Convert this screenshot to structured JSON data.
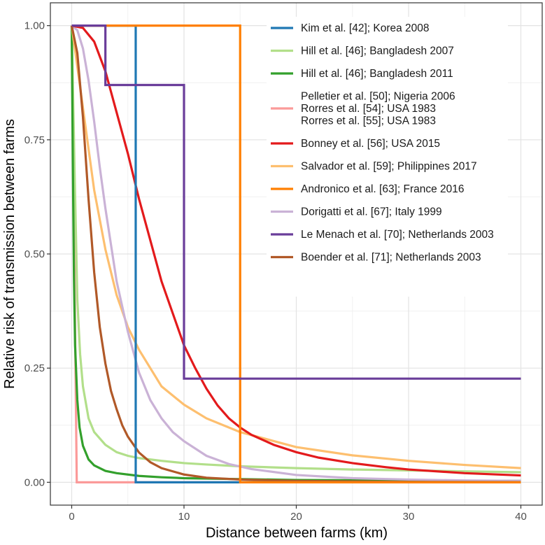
{
  "chart_data": {
    "type": "line",
    "xlabel": "Distance between farms (km)",
    "ylabel": "Relative risk of transmission between farms",
    "xlim": [
      -1.9,
      41.9
    ],
    "ylim": [
      -0.05,
      1.05
    ],
    "x_ticks": [
      0,
      10,
      20,
      30,
      40
    ],
    "x_tick_labels": [
      "0",
      "10",
      "20",
      "30",
      "40"
    ],
    "y_ticks": [
      0,
      0.25,
      0.5,
      0.75,
      1.0
    ],
    "y_tick_labels": [
      "0.00",
      "0.25",
      "0.50",
      "0.75",
      "1.00"
    ],
    "grid": true,
    "legend_position": "top-right",
    "series": [
      {
        "name": "Kim et al. [42]; Korea 2008",
        "color": "#1f78b4",
        "x": [
          0,
          5.7,
          5.7,
          40
        ],
        "y": [
          1,
          1,
          0,
          0
        ]
      },
      {
        "name": "Hill et al. [46]; Bangladesh 2007",
        "color": "#b2df8a",
        "x": [
          0,
          0.25,
          0.5,
          0.75,
          1,
          1.5,
          2,
          3,
          4,
          5,
          6,
          8,
          10,
          12,
          15,
          20,
          25,
          30,
          35,
          40
        ],
        "y": [
          1,
          0.69,
          0.4,
          0.28,
          0.21,
          0.14,
          0.11,
          0.082,
          0.066,
          0.058,
          0.053,
          0.047,
          0.042,
          0.039,
          0.035,
          0.031,
          0.028,
          0.026,
          0.024,
          0.022
        ]
      },
      {
        "name": "Hill et al. [46]; Bangladesh 2011",
        "color": "#33a02c",
        "x": [
          0,
          0.1,
          0.2,
          0.3,
          0.5,
          0.7,
          1,
          1.5,
          2,
          3,
          4,
          6,
          8,
          10,
          15,
          20,
          30,
          40
        ],
        "y": [
          1,
          0.7,
          0.45,
          0.3,
          0.18,
          0.12,
          0.08,
          0.05,
          0.037,
          0.025,
          0.02,
          0.014,
          0.011,
          0.009,
          0.007,
          0.005,
          0.004,
          0.003
        ]
      },
      {
        "name": "Pelletier et al. [50]; Nigeria 2006\nRorres et al. [54]; USA 1983\nRorres et al. [55]; USA 1983",
        "color": "#fb9a99",
        "x": [
          0,
          0.45,
          0.45,
          40
        ],
        "y": [
          1,
          0,
          0,
          0
        ]
      },
      {
        "name": "Bonney et al. [56]; USA 2015",
        "color": "#e31a1c",
        "x": [
          0,
          1,
          2,
          3,
          4,
          5,
          6,
          7,
          8,
          9,
          10,
          11,
          12,
          13,
          14,
          15,
          16,
          18,
          20,
          22,
          25,
          28,
          30,
          35,
          40
        ],
        "y": [
          1,
          0.995,
          0.965,
          0.9,
          0.81,
          0.72,
          0.62,
          0.53,
          0.44,
          0.37,
          0.3,
          0.25,
          0.205,
          0.168,
          0.14,
          0.12,
          0.104,
          0.082,
          0.066,
          0.054,
          0.042,
          0.033,
          0.028,
          0.02,
          0.015
        ]
      },
      {
        "name": "Salvador et al. [59]; Philippines 2017",
        "color": "#fdbf6f",
        "x": [
          0,
          1,
          2,
          3,
          4,
          5,
          6,
          7,
          8,
          10,
          12,
          15,
          20,
          25,
          30,
          35,
          40
        ],
        "y": [
          1,
          0.82,
          0.64,
          0.51,
          0.41,
          0.34,
          0.29,
          0.25,
          0.21,
          0.17,
          0.14,
          0.11,
          0.077,
          0.059,
          0.047,
          0.038,
          0.031
        ]
      },
      {
        "name": "Andronico et al. [63]; France 2016",
        "color": "#ff7f00",
        "x": [
          0,
          15,
          15,
          40
        ],
        "y": [
          1,
          1,
          0,
          0
        ]
      },
      {
        "name": "Dorigatti et al. [67]; Italy 1999",
        "color": "#cab2d6",
        "x": [
          0,
          0.5,
          1,
          1.5,
          2,
          2.5,
          3,
          3.5,
          4,
          5,
          6,
          7,
          8,
          9,
          10,
          12,
          14,
          16,
          20,
          25,
          30,
          35,
          40
        ],
        "y": [
          1,
          0.99,
          0.95,
          0.88,
          0.79,
          0.69,
          0.6,
          0.52,
          0.44,
          0.33,
          0.24,
          0.18,
          0.14,
          0.11,
          0.09,
          0.058,
          0.04,
          0.029,
          0.016,
          0.009,
          0.006,
          0.004,
          0.003
        ]
      },
      {
        "name": "Le Menach et al. [70]; Netherlands 2003",
        "color": "#6a3d9a",
        "x": [
          0,
          3,
          3,
          10,
          10,
          40
        ],
        "y": [
          1,
          1,
          0.87,
          0.87,
          0.227,
          0.227
        ]
      },
      {
        "name": "Boender et al. [71]; Netherlands 2003",
        "color": "#b15928",
        "x": [
          0,
          0.5,
          1,
          1.5,
          2,
          2.5,
          3,
          3.5,
          4,
          4.5,
          5,
          6,
          7,
          8,
          10,
          12,
          15,
          20,
          25,
          30,
          40
        ],
        "y": [
          1,
          0.94,
          0.8,
          0.62,
          0.46,
          0.34,
          0.26,
          0.2,
          0.16,
          0.125,
          0.1,
          0.065,
          0.044,
          0.031,
          0.017,
          0.01,
          0.006,
          0.003,
          0.002,
          0.001,
          0.0005
        ]
      }
    ],
    "draw_order": [
      3,
      1,
      2,
      5,
      7,
      9,
      4,
      0,
      6,
      8
    ]
  }
}
